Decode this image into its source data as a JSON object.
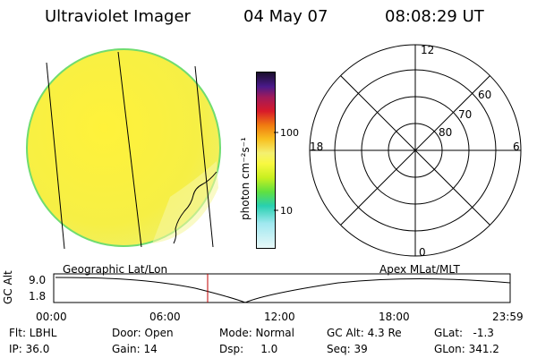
{
  "header": {
    "instrument": "Ultraviolet Imager",
    "date": "04 May 07",
    "time": "08:08:29 UT"
  },
  "colorbar": {
    "unit_label": "photon cm⁻²s⁻¹",
    "ticks": [
      "100",
      "10"
    ]
  },
  "polar_plot": {
    "mlt_labels": {
      "top": "12",
      "bottom": "0",
      "left": "18",
      "right": "6"
    },
    "lat_labels": [
      "60",
      "70",
      "80"
    ]
  },
  "altitude_plot": {
    "ylabel": "GC Alt",
    "yticks": [
      "9.0",
      "1.8"
    ],
    "left_title": "Geographic Lat/Lon",
    "right_title": "Apex MLat/MLT",
    "xticks": [
      "00:00",
      "06:00",
      "12:00",
      "18:00",
      "23:59"
    ],
    "marker_color": "#c00000"
  },
  "info": {
    "flt": "Flt: LBHL",
    "ip": "IP: 36.0",
    "door": "Door: Open",
    "gain": "Gain: 14",
    "mode": "Mode: Normal",
    "dsp": "Dsp:     1.0",
    "gc_alt": "GC Alt: 4.3 Re",
    "seq": "Seq: 39",
    "glat": "GLat:   -1.3",
    "glon": "GLon: 341.2"
  }
}
